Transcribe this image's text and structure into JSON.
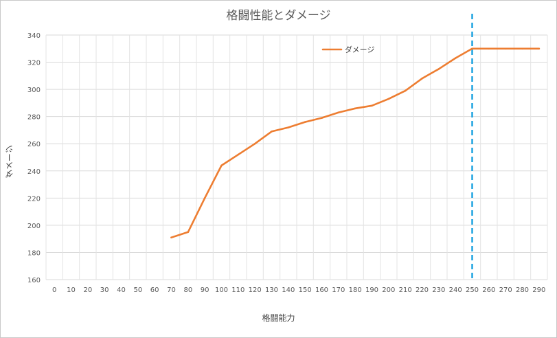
{
  "chart_data": {
    "type": "line",
    "title": "格闘性能とダメージ",
    "xlabel": "格闘能力",
    "ylabel": "ダメージ",
    "categories": [
      "0",
      "10",
      "20",
      "30",
      "40",
      "50",
      "60",
      "70",
      "80",
      "90",
      "100",
      "110",
      "120",
      "130",
      "140",
      "150",
      "160",
      "170",
      "180",
      "190",
      "200",
      "210",
      "220",
      "230",
      "240",
      "250",
      "260",
      "270",
      "280",
      "290"
    ],
    "series": [
      {
        "name": "ダメージ",
        "color": "#ED7D31",
        "values": [
          null,
          null,
          null,
          null,
          null,
          null,
          null,
          191,
          195,
          220,
          244,
          252,
          260,
          269,
          272,
          276,
          279,
          283,
          286,
          288,
          293,
          299,
          308,
          315,
          323,
          330,
          330,
          330,
          330,
          330
        ]
      }
    ],
    "ylim": [
      160,
      340
    ],
    "yticks": [
      160,
      180,
      200,
      220,
      240,
      260,
      280,
      300,
      320,
      340
    ],
    "reference_line": {
      "x": "250",
      "color": "#1FA3E0",
      "style": "dashed"
    },
    "grid": true,
    "legend": "top-center"
  }
}
